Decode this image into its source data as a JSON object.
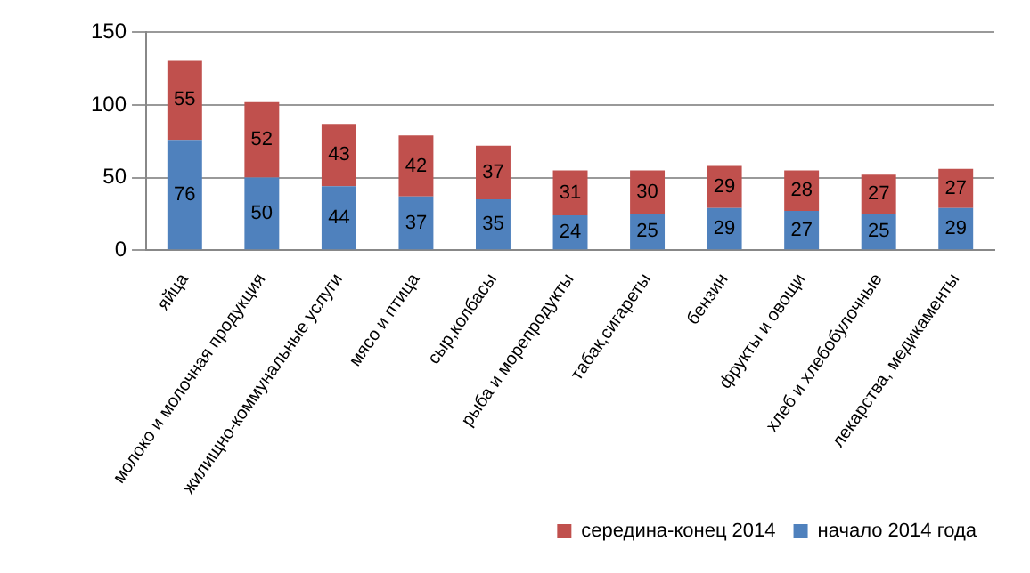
{
  "chart_data": {
    "type": "bar",
    "stacked": true,
    "categories": [
      "яйца",
      "молоко и молочная продукция",
      "жилищно-коммунальные услуги",
      "мясо и птица",
      "сыр,колбасы",
      "рыба и морепродукты",
      "табак,сигареты",
      "бензин",
      "фрукты и овощи",
      "хлеб и хлебобулочные",
      "лекарства, медикаменты"
    ],
    "series": [
      {
        "name": "начало 2014 года",
        "color": "#4f81bd",
        "values": [
          76,
          50,
          44,
          37,
          35,
          24,
          25,
          29,
          27,
          25,
          29
        ]
      },
      {
        "name": "середина-конец 2014",
        "color": "#c0504d",
        "values": [
          55,
          52,
          43,
          42,
          37,
          31,
          30,
          29,
          28,
          27,
          27
        ]
      }
    ],
    "ylim": [
      0,
      150
    ],
    "yticks": [
      0,
      50,
      100,
      150
    ],
    "grid": "y",
    "legend": "bottom right",
    "data_labels": true
  }
}
